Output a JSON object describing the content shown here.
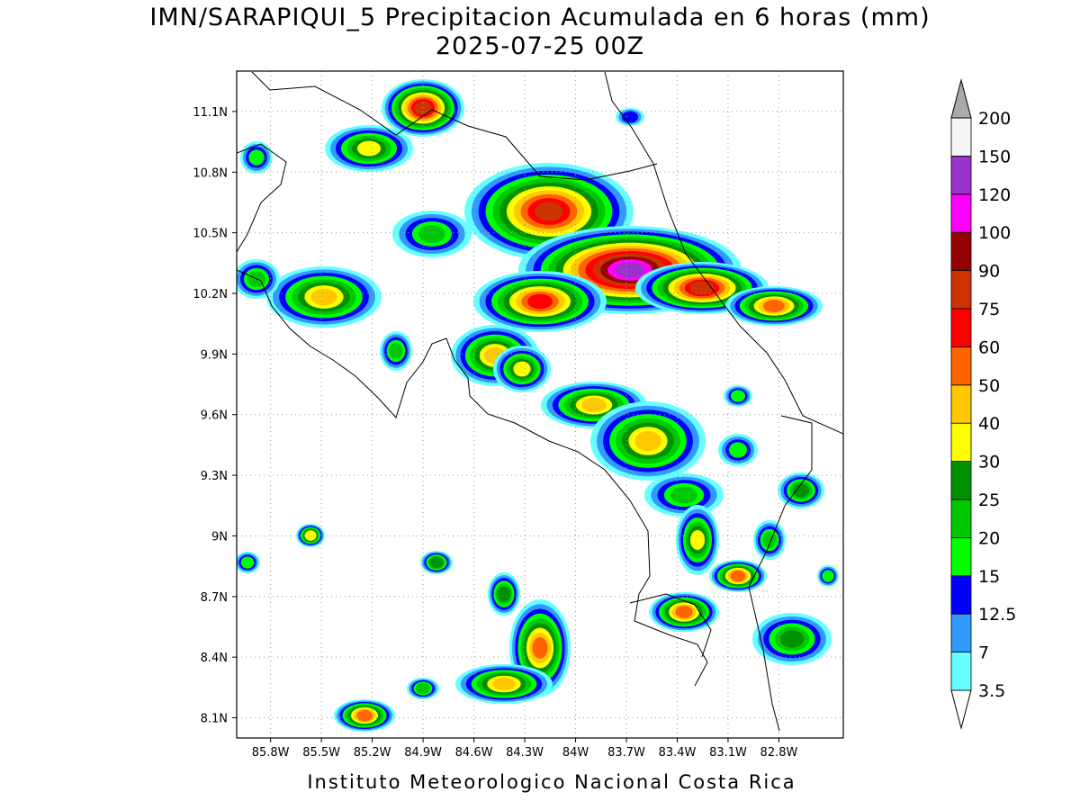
{
  "header": {
    "title": "IMN/SARAPIQUI_5 Precipitacion Acumulada en 6 horas (mm)",
    "subtitle": "2025-07-25 00Z"
  },
  "map": {
    "xlim": [
      -86.0,
      -82.42
    ],
    "ylim": [
      8.0,
      11.3
    ],
    "xticks": [
      {
        "value": -85.8,
        "label": "85.8W"
      },
      {
        "value": -85.5,
        "label": "85.5W"
      },
      {
        "value": -85.2,
        "label": "85.2W"
      },
      {
        "value": -84.9,
        "label": "84.9W"
      },
      {
        "value": -84.6,
        "label": "84.6W"
      },
      {
        "value": -84.3,
        "label": "84.3W"
      },
      {
        "value": -84.0,
        "label": "84W"
      },
      {
        "value": -83.7,
        "label": "83.7W"
      },
      {
        "value": -83.4,
        "label": "83.4W"
      },
      {
        "value": -83.1,
        "label": "83.1W"
      },
      {
        "value": -82.8,
        "label": "82.8W"
      }
    ],
    "yticks": [
      {
        "value": 8.1,
        "label": "8.1N"
      },
      {
        "value": 8.4,
        "label": "8.4N"
      },
      {
        "value": 8.7,
        "label": "8.7N"
      },
      {
        "value": 9.0,
        "label": "9N"
      },
      {
        "value": 9.3,
        "label": "9.3N"
      },
      {
        "value": 9.6,
        "label": "9.6N"
      },
      {
        "value": 9.9,
        "label": "9.9N"
      },
      {
        "value": 10.2,
        "label": "10.2N"
      },
      {
        "value": 10.5,
        "label": "10.5N"
      },
      {
        "value": 10.8,
        "label": "10.8N"
      },
      {
        "value": 11.1,
        "label": "11.1N"
      }
    ],
    "grid": true
  },
  "colorbar": {
    "levels": [
      3.5,
      7,
      12.5,
      15,
      20,
      25,
      30,
      40,
      50,
      60,
      75,
      90,
      100,
      120,
      150,
      200
    ],
    "colors": [
      "#ffffff",
      "#66ffff",
      "#3399ff",
      "#0000ff",
      "#00ff00",
      "#00c800",
      "#009100",
      "#ffff00",
      "#ffc800",
      "#ff6400",
      "#ff0000",
      "#cc3300",
      "#960000",
      "#ff00ff",
      "#9933cc",
      "#f5f5f5",
      "#aaaaaa"
    ]
  },
  "footer": {
    "text": "Instituto Meteorologico Nacional Costa Rica"
  }
}
